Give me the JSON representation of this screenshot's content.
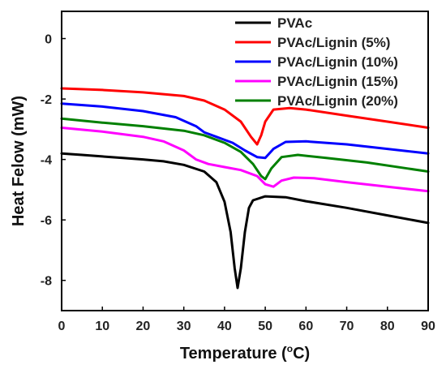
{
  "chart_data": {
    "type": "line",
    "xlabel": "Temperature (",
    "xlabel_unit": "C)",
    "xlabel_degree": "o",
    "ylabel": "Heat Felow (mW)",
    "xlim": [
      0,
      90
    ],
    "ylim": [
      -9.0,
      0.9
    ],
    "x_ticks": [
      "0",
      "10",
      "20",
      "30",
      "40",
      "50",
      "60",
      "70",
      "80",
      "90"
    ],
    "y_ticks": [
      "0",
      "-2",
      "-4",
      "-6",
      "-8"
    ],
    "grid": false,
    "legend_position": "top-right",
    "series": [
      {
        "name": "PVAc",
        "color": "#000000",
        "points": [
          [
            0,
            -3.8
          ],
          [
            5,
            -3.85
          ],
          [
            10,
            -3.9
          ],
          [
            15,
            -3.95
          ],
          [
            20,
            -4.0
          ],
          [
            25,
            -4.06
          ],
          [
            30,
            -4.18
          ],
          [
            35,
            -4.4
          ],
          [
            38,
            -4.75
          ],
          [
            40,
            -5.4
          ],
          [
            41.5,
            -6.4
          ],
          [
            42.5,
            -7.6
          ],
          [
            43.2,
            -8.25
          ],
          [
            44,
            -7.6
          ],
          [
            45,
            -6.4
          ],
          [
            46,
            -5.6
          ],
          [
            47,
            -5.35
          ],
          [
            50,
            -5.22
          ],
          [
            55,
            -5.25
          ],
          [
            60,
            -5.38
          ],
          [
            70,
            -5.6
          ],
          [
            80,
            -5.85
          ],
          [
            90,
            -6.1
          ]
        ]
      },
      {
        "name": "PVAc/Lignin (5%)",
        "color": "#ff0000",
        "points": [
          [
            0,
            -1.65
          ],
          [
            10,
            -1.7
          ],
          [
            20,
            -1.78
          ],
          [
            30,
            -1.9
          ],
          [
            35,
            -2.05
          ],
          [
            40,
            -2.35
          ],
          [
            44,
            -2.75
          ],
          [
            46.5,
            -3.25
          ],
          [
            48,
            -3.5
          ],
          [
            49,
            -3.2
          ],
          [
            50,
            -2.75
          ],
          [
            52,
            -2.35
          ],
          [
            56,
            -2.3
          ],
          [
            60,
            -2.35
          ],
          [
            70,
            -2.55
          ],
          [
            80,
            -2.75
          ],
          [
            90,
            -2.95
          ]
        ]
      },
      {
        "name": "PVAc/Lignin (10%)",
        "color": "#0000ff",
        "points": [
          [
            0,
            -2.15
          ],
          [
            10,
            -2.25
          ],
          [
            20,
            -2.4
          ],
          [
            28,
            -2.6
          ],
          [
            33,
            -2.9
          ],
          [
            35,
            -3.1
          ],
          [
            38,
            -3.25
          ],
          [
            42,
            -3.45
          ],
          [
            45,
            -3.7
          ],
          [
            48,
            -3.92
          ],
          [
            50,
            -3.95
          ],
          [
            52,
            -3.65
          ],
          [
            55,
            -3.42
          ],
          [
            60,
            -3.4
          ],
          [
            70,
            -3.5
          ],
          [
            80,
            -3.65
          ],
          [
            90,
            -3.8
          ]
        ]
      },
      {
        "name": "PVAc/Lignin (15%)",
        "color": "#ff00ff",
        "points": [
          [
            0,
            -2.95
          ],
          [
            10,
            -3.08
          ],
          [
            20,
            -3.25
          ],
          [
            25,
            -3.4
          ],
          [
            30,
            -3.7
          ],
          [
            33,
            -4.0
          ],
          [
            36,
            -4.15
          ],
          [
            40,
            -4.25
          ],
          [
            44,
            -4.35
          ],
          [
            48,
            -4.55
          ],
          [
            50,
            -4.82
          ],
          [
            52,
            -4.9
          ],
          [
            54,
            -4.7
          ],
          [
            57,
            -4.6
          ],
          [
            62,
            -4.62
          ],
          [
            70,
            -4.75
          ],
          [
            80,
            -4.9
          ],
          [
            90,
            -5.05
          ]
        ]
      },
      {
        "name": "PVAc/Lignin (20%)",
        "color": "#008000",
        "points": [
          [
            0,
            -2.65
          ],
          [
            10,
            -2.78
          ],
          [
            20,
            -2.9
          ],
          [
            30,
            -3.05
          ],
          [
            35,
            -3.2
          ],
          [
            40,
            -3.45
          ],
          [
            44,
            -3.75
          ],
          [
            47,
            -4.15
          ],
          [
            49,
            -4.55
          ],
          [
            50,
            -4.65
          ],
          [
            51.5,
            -4.3
          ],
          [
            54,
            -3.92
          ],
          [
            58,
            -3.85
          ],
          [
            65,
            -3.95
          ],
          [
            75,
            -4.1
          ],
          [
            85,
            -4.3
          ],
          [
            90,
            -4.4
          ]
        ]
      }
    ]
  }
}
